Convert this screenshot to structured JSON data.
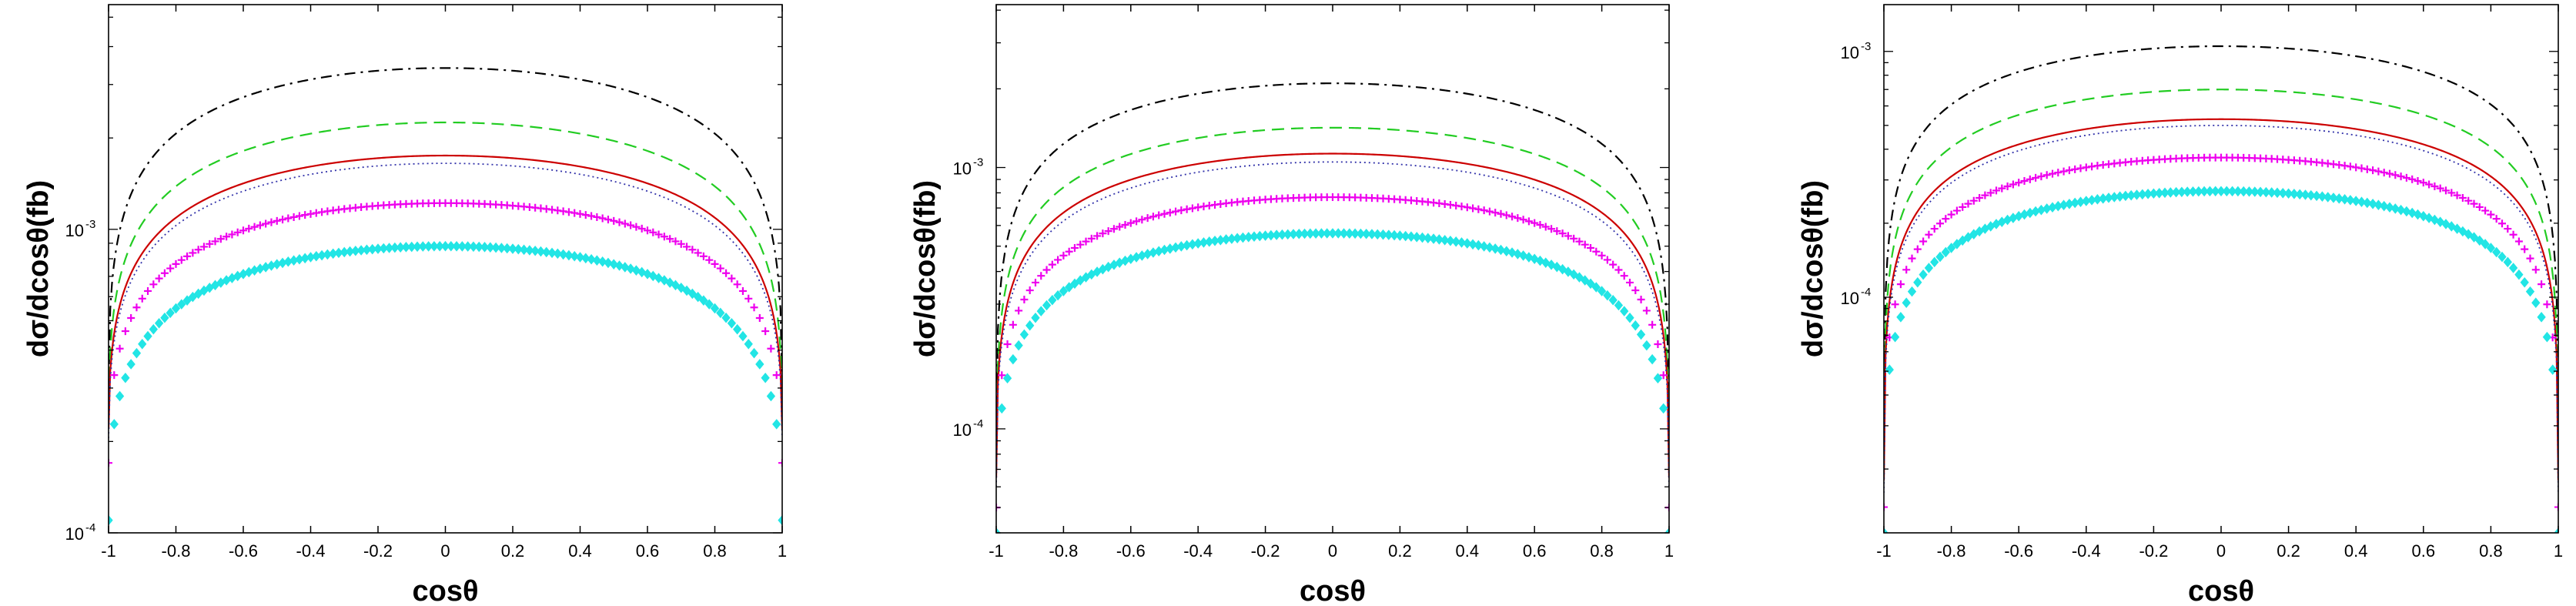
{
  "chart_data": [
    {
      "type": "line",
      "xlabel": "cosθ",
      "ylabel": "dσ/dcosθ(fb)",
      "yscale": "log",
      "xlim": [
        -1,
        1
      ],
      "ylim": [
        0.0001,
        0.0055
      ],
      "x_ticks": [
        "-1",
        "-0.8",
        "-0.6",
        "-0.4",
        "-0.2",
        "0",
        "0.2",
        "0.4",
        "0.6",
        "0.8",
        "1"
      ],
      "y_ticks": [
        {
          "value": 0.0001,
          "base": "10",
          "exp": "-4"
        },
        {
          "value": 0.001,
          "base": "10",
          "exp": "-3"
        }
      ],
      "series": [
        {
          "name": "black dash-dot",
          "color": "#000000",
          "style": "dashdot",
          "peak": 0.0034,
          "edge": 0.0003
        },
        {
          "name": "green dashed",
          "color": "#22cc22",
          "style": "dashed",
          "peak": 0.00225,
          "edge": 0.00024
        },
        {
          "name": "red solid",
          "color": "#cc0000",
          "style": "solid",
          "peak": 0.00175,
          "edge": 0.00022
        },
        {
          "name": "blue dotted",
          "color": "#3333aa",
          "style": "dotted",
          "peak": 0.00165,
          "edge": 0.000205
        },
        {
          "name": "magenta plus",
          "color": "#ee00ee",
          "style": "plus",
          "peak": 0.00122,
          "edge": 0.00017
        },
        {
          "name": "cyan diamond",
          "color": "#22e5e5",
          "style": "diamond",
          "peak": 0.00088,
          "edge": 0.00011
        }
      ]
    },
    {
      "type": "line",
      "xlabel": "cosθ",
      "ylabel": "dσ/dcosθ(fb)",
      "yscale": "log",
      "xlim": [
        -1,
        1
      ],
      "ylim": [
        4e-05,
        0.0042
      ],
      "x_ticks": [
        "-1",
        "-0.8",
        "-0.6",
        "-0.4",
        "-0.2",
        "0",
        "0.2",
        "0.4",
        "0.6",
        "0.8",
        "1"
      ],
      "y_ticks": [
        {
          "value": 0.0001,
          "base": "10",
          "exp": "-4"
        },
        {
          "value": 0.001,
          "base": "10",
          "exp": "-3"
        }
      ],
      "series": [
        {
          "name": "black dash-dot",
          "color": "#000000",
          "style": "dashdot",
          "peak": 0.0021,
          "edge": 8e-05
        },
        {
          "name": "green dashed",
          "color": "#22cc22",
          "style": "dashed",
          "peak": 0.00142,
          "edge": 7e-05
        },
        {
          "name": "red solid",
          "color": "#cc0000",
          "style": "solid",
          "peak": 0.00113,
          "edge": 6.5e-05
        },
        {
          "name": "blue dotted",
          "color": "#3333aa",
          "style": "dotted",
          "peak": 0.00105,
          "edge": 6e-05
        },
        {
          "name": "magenta plus",
          "color": "#ee00ee",
          "style": "plus",
          "peak": 0.00077,
          "edge": 5e-05
        },
        {
          "name": "cyan diamond",
          "color": "#22e5e5",
          "style": "diamond",
          "peak": 0.00056,
          "edge": 4e-05
        }
      ]
    },
    {
      "type": "line",
      "xlabel": "cosθ",
      "ylabel": "dσ/dcosθ(fb)",
      "yscale": "log",
      "xlim": [
        -1,
        1
      ],
      "ylim": [
        1.1e-05,
        0.00155
      ],
      "x_ticks": [
        "-1",
        "-0.8",
        "-0.6",
        "-0.4",
        "-0.2",
        "0",
        "0.2",
        "0.4",
        "0.6",
        "0.8",
        "1"
      ],
      "y_ticks": [
        {
          "value": 0.0001,
          "base": "10",
          "exp": "-4"
        },
        {
          "value": 0.001,
          "base": "10",
          "exp": "-3"
        }
      ],
      "series": [
        {
          "name": "black dash-dot",
          "color": "#000000",
          "style": "dashdot",
          "peak": 0.00105,
          "edge": 2.2e-05
        },
        {
          "name": "green dashed",
          "color": "#22cc22",
          "style": "dashed",
          "peak": 0.0007,
          "edge": 2e-05
        },
        {
          "name": "red solid",
          "color": "#cc0000",
          "style": "solid",
          "peak": 0.00053,
          "edge": 1.8e-05
        },
        {
          "name": "blue dotted",
          "color": "#3333aa",
          "style": "dotted",
          "peak": 0.0005,
          "edge": 1.6e-05
        },
        {
          "name": "magenta plus",
          "color": "#ee00ee",
          "style": "plus",
          "peak": 0.00037,
          "edge": 1.4e-05
        },
        {
          "name": "cyan diamond",
          "color": "#22e5e5",
          "style": "diamond",
          "peak": 0.00027,
          "edge": 1.1e-05
        }
      ]
    }
  ]
}
